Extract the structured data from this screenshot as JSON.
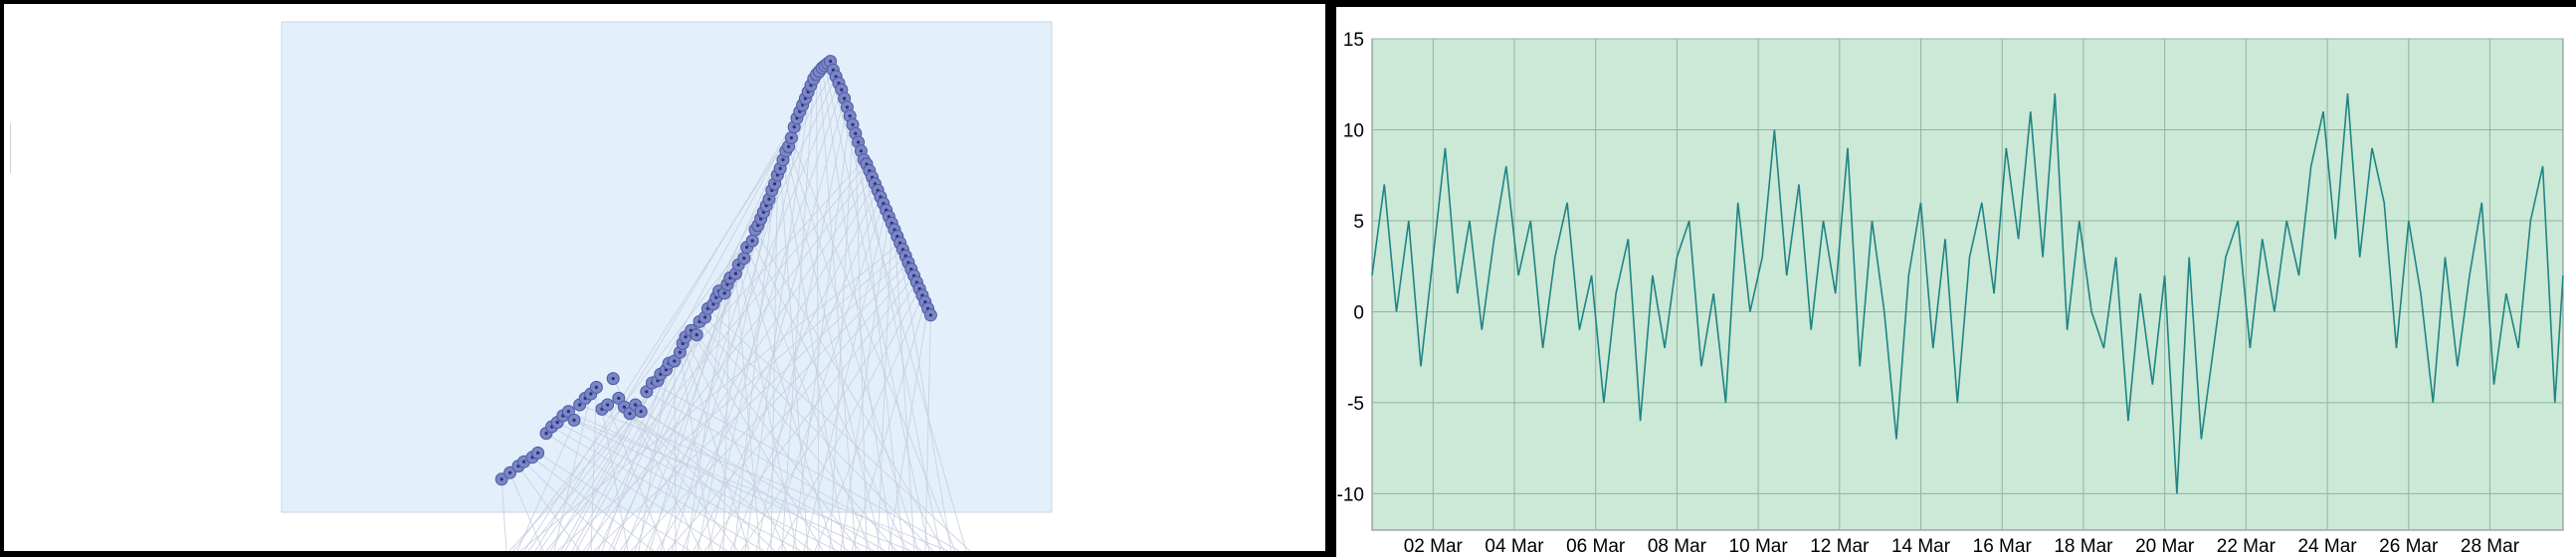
{
  "left_chart": {
    "type": "scatter",
    "colors": {
      "plot_background": "#e3f0fb",
      "plot_border": "#c7d6e6",
      "marker_fill": "#7a86c6",
      "marker_stroke": "#4e5aa2",
      "marker_dot": "#2a3270",
      "connector_line": "#c9cfe0"
    }
  },
  "chart_data": [
    {
      "type": "scatter",
      "title": "",
      "xlabel": "",
      "ylabel": "",
      "grid": false,
      "series": [
        {
          "points": [
            [
              0.02,
              0.03
            ],
            [
              0.035,
              0.045
            ],
            [
              0.05,
              0.06
            ],
            [
              0.06,
              0.07
            ],
            [
              0.075,
              0.08
            ],
            [
              0.085,
              0.09
            ],
            [
              0.1,
              0.135
            ],
            [
              0.11,
              0.15
            ],
            [
              0.12,
              0.16
            ],
            [
              0.13,
              0.175
            ],
            [
              0.14,
              0.185
            ],
            [
              0.15,
              0.165
            ],
            [
              0.16,
              0.2
            ],
            [
              0.17,
              0.215
            ],
            [
              0.18,
              0.225
            ],
            [
              0.19,
              0.24
            ],
            [
              0.2,
              0.19
            ],
            [
              0.21,
              0.2
            ],
            [
              0.22,
              0.26
            ],
            [
              0.23,
              0.215
            ],
            [
              0.24,
              0.195
            ],
            [
              0.25,
              0.18
            ],
            [
              0.26,
              0.2
            ],
            [
              0.27,
              0.185
            ],
            [
              0.28,
              0.23
            ],
            [
              0.29,
              0.25
            ],
            [
              0.3,
              0.255
            ],
            [
              0.305,
              0.27
            ],
            [
              0.315,
              0.28
            ],
            [
              0.32,
              0.295
            ],
            [
              0.33,
              0.3
            ],
            [
              0.34,
              0.32
            ],
            [
              0.345,
              0.34
            ],
            [
              0.35,
              0.355
            ],
            [
              0.36,
              0.37
            ],
            [
              0.37,
              0.36
            ],
            [
              0.375,
              0.39
            ],
            [
              0.385,
              0.4
            ],
            [
              0.39,
              0.42
            ],
            [
              0.4,
              0.43
            ],
            [
              0.405,
              0.445
            ],
            [
              0.41,
              0.46
            ],
            [
              0.42,
              0.455
            ],
            [
              0.425,
              0.475
            ],
            [
              0.43,
              0.49
            ],
            [
              0.44,
              0.5
            ],
            [
              0.445,
              0.52
            ],
            [
              0.455,
              0.535
            ],
            [
              0.46,
              0.56
            ],
            [
              0.47,
              0.575
            ],
            [
              0.475,
              0.6
            ],
            [
              0.48,
              0.61
            ],
            [
              0.485,
              0.625
            ],
            [
              0.49,
              0.64
            ],
            [
              0.495,
              0.655
            ],
            [
              0.5,
              0.67
            ],
            [
              0.505,
              0.69
            ],
            [
              0.51,
              0.705
            ],
            [
              0.515,
              0.725
            ],
            [
              0.52,
              0.74
            ],
            [
              0.525,
              0.76
            ],
            [
              0.53,
              0.78
            ],
            [
              0.535,
              0.79
            ],
            [
              0.54,
              0.81
            ],
            [
              0.545,
              0.835
            ],
            [
              0.55,
              0.855
            ],
            [
              0.555,
              0.87
            ],
            [
              0.56,
              0.885
            ],
            [
              0.565,
              0.9
            ],
            [
              0.57,
              0.915
            ],
            [
              0.575,
              0.93
            ],
            [
              0.58,
              0.945
            ],
            [
              0.585,
              0.955
            ],
            [
              0.59,
              0.962
            ],
            [
              0.595,
              0.97
            ],
            [
              0.6,
              0.975
            ],
            [
              0.605,
              0.98
            ],
            [
              0.61,
              0.985
            ],
            [
              0.615,
              0.965
            ],
            [
              0.62,
              0.95
            ],
            [
              0.625,
              0.935
            ],
            [
              0.63,
              0.92
            ],
            [
              0.635,
              0.9
            ],
            [
              0.64,
              0.88
            ],
            [
              0.645,
              0.86
            ],
            [
              0.65,
              0.84
            ],
            [
              0.655,
              0.82
            ],
            [
              0.66,
              0.8
            ],
            [
              0.665,
              0.78
            ],
            [
              0.67,
              0.76
            ],
            [
              0.675,
              0.75
            ],
            [
              0.68,
              0.735
            ],
            [
              0.685,
              0.72
            ],
            [
              0.69,
              0.705
            ],
            [
              0.695,
              0.69
            ],
            [
              0.7,
              0.675
            ],
            [
              0.705,
              0.66
            ],
            [
              0.71,
              0.645
            ],
            [
              0.715,
              0.63
            ],
            [
              0.72,
              0.615
            ],
            [
              0.725,
              0.6
            ],
            [
              0.73,
              0.585
            ],
            [
              0.735,
              0.57
            ],
            [
              0.74,
              0.555
            ],
            [
              0.745,
              0.54
            ],
            [
              0.75,
              0.525
            ],
            [
              0.755,
              0.51
            ],
            [
              0.76,
              0.495
            ],
            [
              0.765,
              0.48
            ],
            [
              0.77,
              0.465
            ],
            [
              0.775,
              0.45
            ],
            [
              0.78,
              0.435
            ],
            [
              0.785,
              0.42
            ],
            [
              0.79,
              0.405
            ]
          ]
        }
      ]
    },
    {
      "type": "line",
      "title": "",
      "xlabel": "",
      "ylabel": "",
      "grid": true,
      "ylim": [
        -12,
        15
      ],
      "y_ticks": [
        15,
        10,
        5,
        0,
        -5,
        -10
      ],
      "x_range_days": [
        0.5,
        29.8
      ],
      "x_ticks": [
        {
          "day": 2,
          "label": "02 Mar"
        },
        {
          "day": 4,
          "label": "04 Mar"
        },
        {
          "day": 6,
          "label": "06 Mar"
        },
        {
          "day": 8,
          "label": "08 Mar"
        },
        {
          "day": 10,
          "label": "10 Mar"
        },
        {
          "day": 12,
          "label": "12 Mar"
        },
        {
          "day": 14,
          "label": "14 Mar"
        },
        {
          "day": 16,
          "label": "16 Mar"
        },
        {
          "day": 18,
          "label": "18 Mar"
        },
        {
          "day": 20,
          "label": "20 Mar"
        },
        {
          "day": 22,
          "label": "22 Mar"
        },
        {
          "day": 24,
          "label": "24 Mar"
        },
        {
          "day": 26,
          "label": "26 Mar"
        },
        {
          "day": 28,
          "label": "28 Mar"
        }
      ],
      "colors": {
        "plot_background": "#cce8d6",
        "grid_line": "#8fb5a0",
        "series_line": "#1e8585",
        "axis_line": "#808080"
      },
      "series": [
        {
          "x": [
            0.5,
            0.8,
            1.1,
            1.4,
            1.7,
            2.0,
            2.3,
            2.6,
            2.9,
            3.2,
            3.5,
            3.8,
            4.1,
            4.4,
            4.7,
            5.0,
            5.3,
            5.6,
            5.9,
            6.2,
            6.5,
            6.8,
            7.1,
            7.4,
            7.7,
            8.0,
            8.3,
            8.6,
            8.9,
            9.2,
            9.5,
            9.8,
            10.1,
            10.4,
            10.7,
            11.0,
            11.3,
            11.6,
            11.9,
            12.2,
            12.5,
            12.8,
            13.1,
            13.4,
            13.7,
            14.0,
            14.3,
            14.6,
            14.9,
            15.2,
            15.5,
            15.8,
            16.1,
            16.4,
            16.7,
            17.0,
            17.3,
            17.6,
            17.9,
            18.2,
            18.5,
            18.8,
            19.1,
            19.4,
            19.7,
            20.0,
            20.3,
            20.6,
            20.9,
            21.2,
            21.5,
            21.8,
            22.1,
            22.4,
            22.7,
            23.0,
            23.3,
            23.6,
            23.9,
            24.2,
            24.5,
            24.8,
            25.1,
            25.4,
            25.7,
            26.0,
            26.3,
            26.6,
            26.9,
            27.2,
            27.5,
            27.8,
            28.1,
            28.4,
            28.7,
            29.0,
            29.3,
            29.6,
            29.8
          ],
          "y": [
            2,
            7,
            0,
            5,
            -3,
            3,
            9,
            1,
            5,
            -1,
            4,
            8,
            2,
            5,
            -2,
            3,
            6,
            -1,
            2,
            -5,
            1,
            4,
            -6,
            2,
            -2,
            3,
            5,
            -3,
            1,
            -5,
            6,
            0,
            3,
            10,
            2,
            7,
            -1,
            5,
            1,
            9,
            -3,
            5,
            0,
            -7,
            2,
            6,
            -2,
            4,
            -5,
            3,
            6,
            1,
            9,
            4,
            11,
            3,
            12,
            -1,
            5,
            0,
            -2,
            3,
            -6,
            1,
            -4,
            2,
            -10,
            3,
            -7,
            -2,
            3,
            5,
            -2,
            4,
            0,
            5,
            2,
            8,
            11,
            4,
            12,
            3,
            9,
            6,
            -2,
            5,
            1,
            -5,
            3,
            -3,
            2,
            6,
            -4,
            1,
            -2,
            5,
            8,
            -5,
            2
          ]
        }
      ]
    }
  ]
}
